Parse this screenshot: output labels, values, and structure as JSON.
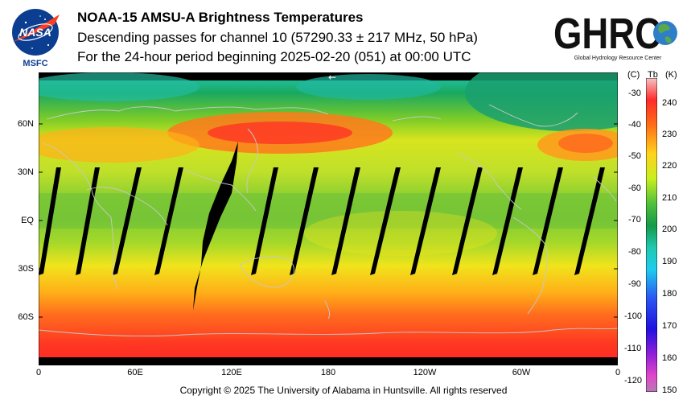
{
  "header": {
    "title": "NOAA-15 AMSU-A Brightness Temperatures",
    "line2": "Descending passes for channel 10 (57290.33 ± 217 MHz, 50 hPa)",
    "line3": "For the 24-hour period beginning 2025-02-20 (051) at 00:00 UTC"
  },
  "logos": {
    "nasa_text": "NASA",
    "msfc_text": "MSFC",
    "ghrc_text": "GHRC",
    "ghrc_subtitle": "Global Hydrology Resource Center"
  },
  "map": {
    "lat_labels": [
      "60N",
      "30N",
      "EQ",
      "30S",
      "60S"
    ],
    "lon_labels": [
      "0",
      "60E",
      "120E",
      "180",
      "120W",
      "60W",
      "0"
    ],
    "arrow_glyph": "←"
  },
  "colorbar": {
    "header_c": "(C)",
    "header_tb": "Tb",
    "header_k": "(K)",
    "celsius_ticks": [
      "-30",
      "-40",
      "-50",
      "-60",
      "-70",
      "-80",
      "-90",
      "-100",
      "-110",
      "-120"
    ],
    "kelvin_ticks": [
      "240",
      "230",
      "220",
      "210",
      "200",
      "190",
      "180",
      "170",
      "160",
      "150"
    ],
    "colors": {
      "240": "#f5c4c4",
      "235": "#ff2a2a",
      "228": "#ff6e18",
      "221": "#ffd21c",
      "215": "#c8ef20",
      "209": "#52c03c",
      "203": "#149a48",
      "198": "#20c8b0",
      "192": "#20ccee",
      "185": "#2a58f2",
      "175": "#2010e0",
      "165": "#9020d8",
      "157": "#e048c8",
      "150": "#b47ab4"
    }
  },
  "footer": {
    "copyright": "Copyright © 2025 The University of Alabama in Huntsville.  All rights reserved"
  }
}
